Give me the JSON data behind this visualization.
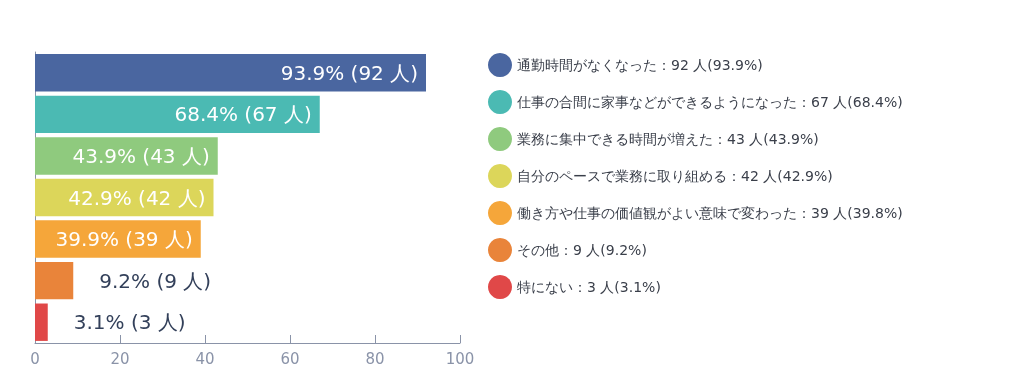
{
  "chart_data": {
    "type": "bar",
    "orientation": "horizontal",
    "categories": [
      null,
      null,
      null,
      null,
      null,
      null,
      null
    ],
    "series": [
      {
        "name": "通勤時間がなくなった：92 人(93.9%)",
        "color": "#4a66a0",
        "values": [
          92,
          null,
          null,
          null,
          null,
          null,
          null
        ],
        "value_labels": [
          "93.9% (92 人)",
          null,
          null,
          null,
          null,
          null,
          null
        ]
      },
      {
        "name": "仕事の合間に家事などができるようになった：67 人(68.4%)",
        "color": "#4bbab3",
        "values": [
          null,
          67,
          null,
          null,
          null,
          null,
          null
        ],
        "value_labels": [
          null,
          "68.4% (67 人)",
          null,
          null,
          null,
          null,
          null
        ]
      },
      {
        "name": "業務に集中できる時間が増えた：43 人(43.9%)",
        "color": "#8fca7e",
        "values": [
          null,
          null,
          43,
          null,
          null,
          null,
          null
        ],
        "value_labels": [
          null,
          null,
          "43.9% (43 人)",
          null,
          null,
          null,
          null
        ]
      },
      {
        "name": "自分のペースで業務に取り組める：42 人(42.9%)",
        "color": "#dcd65a",
        "values": [
          null,
          null,
          null,
          42,
          null,
          null,
          null
        ],
        "value_labels": [
          null,
          null,
          null,
          "42.9% (42 人)",
          null,
          null,
          null
        ]
      },
      {
        "name": "働き方や仕事の価値観がよい意味で変わった：39 人(39.8%)",
        "color": "#f5a63a",
        "values": [
          null,
          null,
          null,
          null,
          39,
          null,
          null
        ],
        "value_labels": [
          null,
          null,
          null,
          null,
          "39.9% (39 人)",
          null,
          null
        ]
      },
      {
        "name": "その他：9 人(9.2%)",
        "color": "#e9843a",
        "values": [
          null,
          null,
          null,
          null,
          null,
          9,
          null
        ],
        "value_labels": [
          null,
          null,
          null,
          null,
          null,
          "9.2% (9 人)",
          null
        ]
      },
      {
        "name": "特にない：3 人(3.1%)",
        "color": "#e04848",
        "values": [
          null,
          null,
          null,
          null,
          null,
          null,
          3
        ],
        "value_labels": [
          null,
          null,
          null,
          null,
          null,
          null,
          "3.1% (3 人)"
        ]
      }
    ],
    "xlim": [
      0,
      100
    ],
    "xticks": [
      0,
      20,
      40,
      60,
      80,
      100
    ],
    "legend": "right",
    "tick_labels": "x",
    "grid": false
  }
}
